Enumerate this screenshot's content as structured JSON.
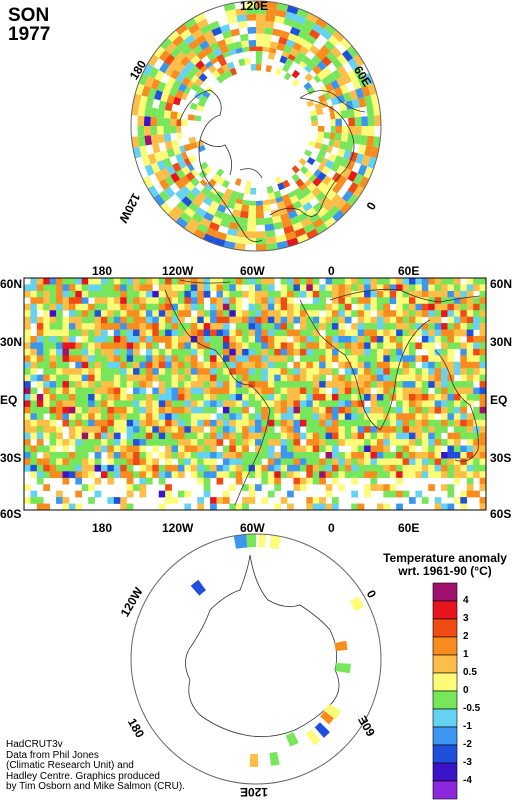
{
  "title": {
    "season": "SON",
    "year": "1977"
  },
  "north_polar": {
    "labels": {
      "top": "120E",
      "right": "60E",
      "bottom_right": "0",
      "bottom_left": "120W",
      "left": "180"
    }
  },
  "equirect": {
    "top_lon_labels": [
      "180",
      "120W",
      "60W",
      "0",
      "60E"
    ],
    "bottom_lon_labels": [
      "180",
      "120W",
      "60W",
      "0",
      "60E"
    ],
    "lat_labels": [
      "60N",
      "30N",
      "EQ",
      "30S",
      "60S"
    ]
  },
  "south_polar": {
    "labels": {
      "left": "120W",
      "right": "0",
      "bottom_left": "180",
      "bottom_right": "60E",
      "bottom": "120E"
    }
  },
  "legend": {
    "title_line1": "Temperature anomaly",
    "title_line2": "wrt. 1961-90  (°C)",
    "entries": [
      {
        "label": "4",
        "color": "#a0106e"
      },
      {
        "label": "3",
        "color": "#e8141e"
      },
      {
        "label": "2",
        "color": "#f04b14"
      },
      {
        "label": "1",
        "color": "#f88c1e"
      },
      {
        "label": "0.5",
        "color": "#fcbe46"
      },
      {
        "label": "0",
        "color": "#fcfc78"
      },
      {
        "label": "-0.5",
        "color": "#78e65a"
      },
      {
        "label": "-1",
        "color": "#64d2f0"
      },
      {
        "label": "-2",
        "color": "#3c96f0"
      },
      {
        "label": "-3",
        "color": "#1e50dc"
      },
      {
        "label": "-4",
        "color": "#3c14c8"
      },
      {
        "label": "",
        "color": "#8c28dc"
      }
    ]
  },
  "credits": [
    "HadCRUT3v",
    "Data from Phil Jones",
    "(Climatic Research Unit) and",
    "Hadley Centre.  Graphics produced",
    "by Tim Osborn and Mike Salmon (CRU)."
  ]
}
